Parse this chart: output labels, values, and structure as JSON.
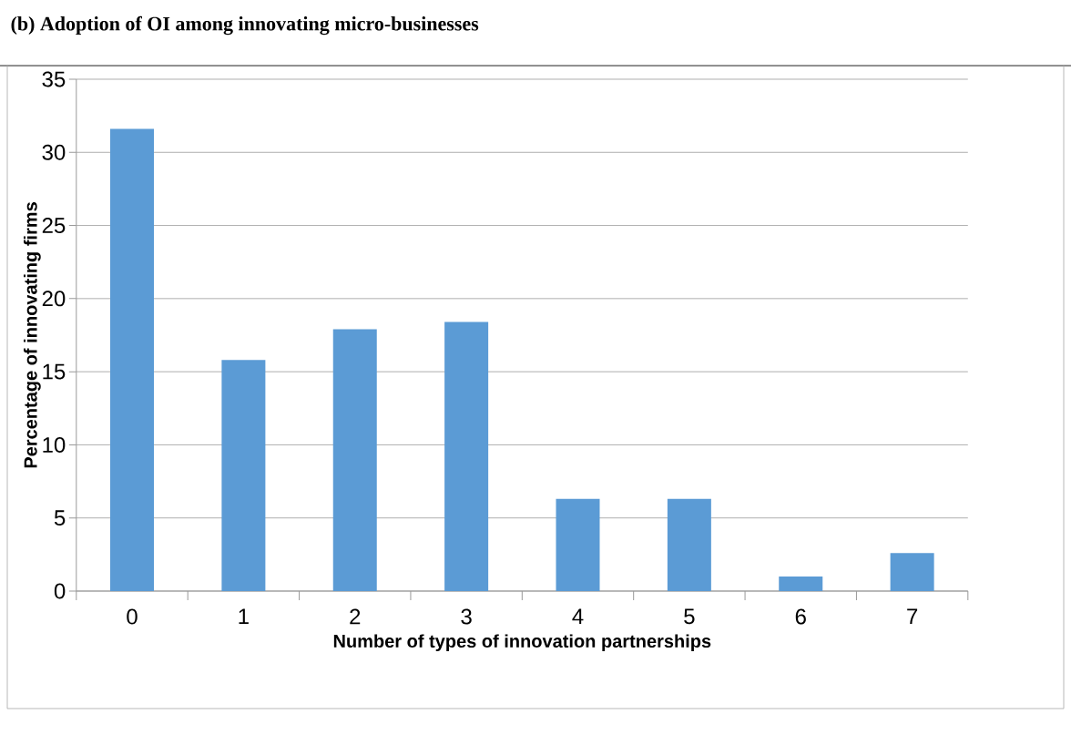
{
  "chart_data": {
    "type": "bar",
    "title": "(b) Adoption of OI among innovating micro-businesses",
    "xlabel": "Number of types of innovation partnerships",
    "ylabel": "Percentage of innovating firms",
    "categories": [
      "0",
      "1",
      "2",
      "3",
      "4",
      "5",
      "6",
      "7"
    ],
    "values": [
      31.6,
      15.8,
      17.9,
      18.4,
      6.3,
      6.3,
      1.0,
      2.6
    ],
    "color": "#5b9bd5",
    "ylim": [
      0,
      35
    ],
    "yticks": [
      0,
      5,
      10,
      15,
      20,
      25,
      30,
      35
    ],
    "grid": "y"
  }
}
